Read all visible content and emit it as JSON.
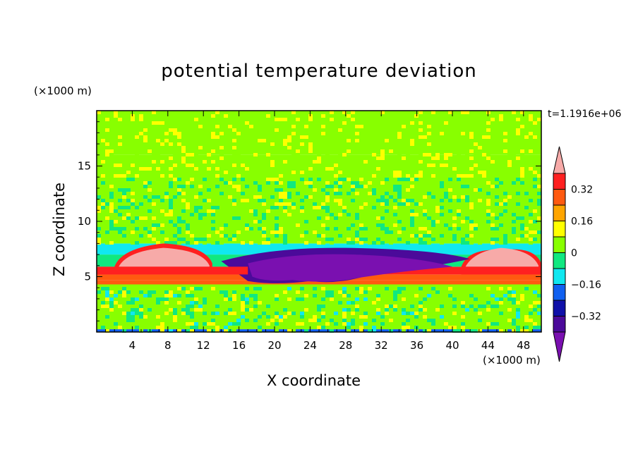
{
  "chart_data": {
    "type": "heatmap",
    "title": "potential temperature deviation",
    "xlabel": "X coordinate",
    "ylabel": "Z coordinate",
    "x_unit": "(×1000 m)",
    "y_unit": "(×1000 m)",
    "time_label": "t=1.1916e+06",
    "xlim": [
      0,
      50
    ],
    "ylim": [
      0,
      20
    ],
    "x_ticks": [
      4,
      8,
      12,
      16,
      20,
      24,
      28,
      32,
      36,
      40,
      44,
      48
    ],
    "y_ticks": [
      5,
      10,
      15
    ],
    "colorbar": {
      "levels": [
        -0.48,
        -0.4,
        -0.32,
        -0.24,
        -0.16,
        -0.08,
        0,
        0.08,
        0.16,
        0.24,
        0.32,
        0.4
      ],
      "labels": [
        "0.32",
        "0.16",
        "0",
        "−0.16",
        "−0.32"
      ],
      "label_values": [
        0.32,
        0.16,
        0,
        -0.16,
        -0.32
      ],
      "colors": [
        "#7a10b0",
        "#4b0a9a",
        "#1010a8",
        "#1060f0",
        "#10e8f0",
        "#10e880",
        "#88ff00",
        "#ffff00",
        "#ffa500",
        "#ff5a10",
        "#ff2020",
        "#f7aaa8"
      ],
      "extend": "both"
    },
    "layers": [
      {
        "z": [
          0,
          0.25
        ],
        "value": -0.2
      },
      {
        "z": [
          0.25,
          4.3
        ],
        "value": 0.02
      },
      {
        "z": [
          4.3,
          4.7
        ],
        "value": 0.24
      },
      {
        "z": [
          4.7,
          5.2
        ],
        "value": 0.28
      },
      {
        "z": [
          5.2,
          5.9
        ],
        "value": 0.36
      },
      {
        "z": [
          5.9,
          7.0
        ],
        "value": -0.05
      },
      {
        "z": [
          7.0,
          8.0
        ],
        "value": -0.12
      },
      {
        "z": [
          8.0,
          16.0
        ],
        "value": 0.02
      },
      {
        "z": [
          16.0,
          20.0
        ],
        "value": 0.06
      }
    ],
    "anomalies": [
      {
        "name": "warm-west",
        "x": [
          2,
          13
        ],
        "z": [
          5.5,
          8.0
        ],
        "value": 0.44
      },
      {
        "name": "warm-east",
        "x": [
          41,
          50
        ],
        "z": [
          5.5,
          7.4
        ],
        "value": 0.44
      },
      {
        "name": "cold-center",
        "x": [
          14,
          42
        ],
        "z": [
          4.3,
          7.6
        ],
        "value": -0.46
      }
    ]
  }
}
